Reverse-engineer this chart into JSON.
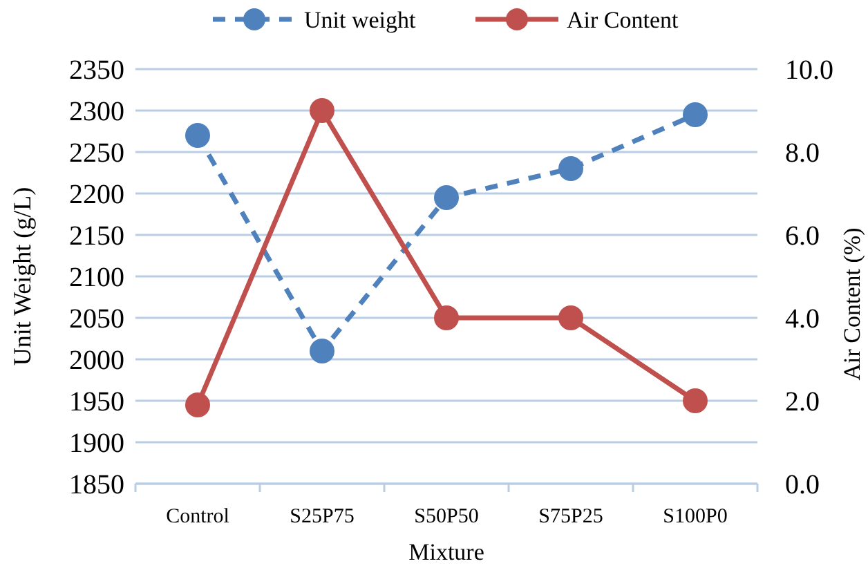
{
  "chart_data": {
    "type": "line",
    "xlabel": "Mixture",
    "ylabel": "Unit Weight (g/L)",
    "y2label": "Air Content (%)",
    "categories": [
      "Control",
      "S25P75",
      "S50P50",
      "S75P25",
      "S100P0"
    ],
    "series": [
      {
        "name": "Unit weight",
        "color": "#4f81bd",
        "values": [
          2270,
          2010,
          2195,
          2230,
          2295
        ],
        "line_style": "dashed"
      },
      {
        "name": "Air Content",
        "color": "#c0504d",
        "values": [
          1.9,
          9.0,
          4.0,
          4.0,
          2.0
        ],
        "axis": "y2",
        "line_style": "solid"
      }
    ],
    "ylim": [
      1850,
      2350
    ],
    "yticks": [
      1850,
      1900,
      1950,
      2000,
      2050,
      2100,
      2150,
      2200,
      2250,
      2300,
      2350
    ],
    "y2lim": [
      0,
      10
    ],
    "y2ticks": [
      {
        "value": 0,
        "label": "0.0"
      },
      {
        "value": 2,
        "label": "2.0"
      },
      {
        "value": 4,
        "label": "4.0"
      },
      {
        "value": 6,
        "label": "6.0"
      },
      {
        "value": 8,
        "label": "8.0"
      },
      {
        "value": 10,
        "label": "10.0"
      }
    ],
    "grid": "y",
    "legend": "top",
    "marker": "circle"
  }
}
